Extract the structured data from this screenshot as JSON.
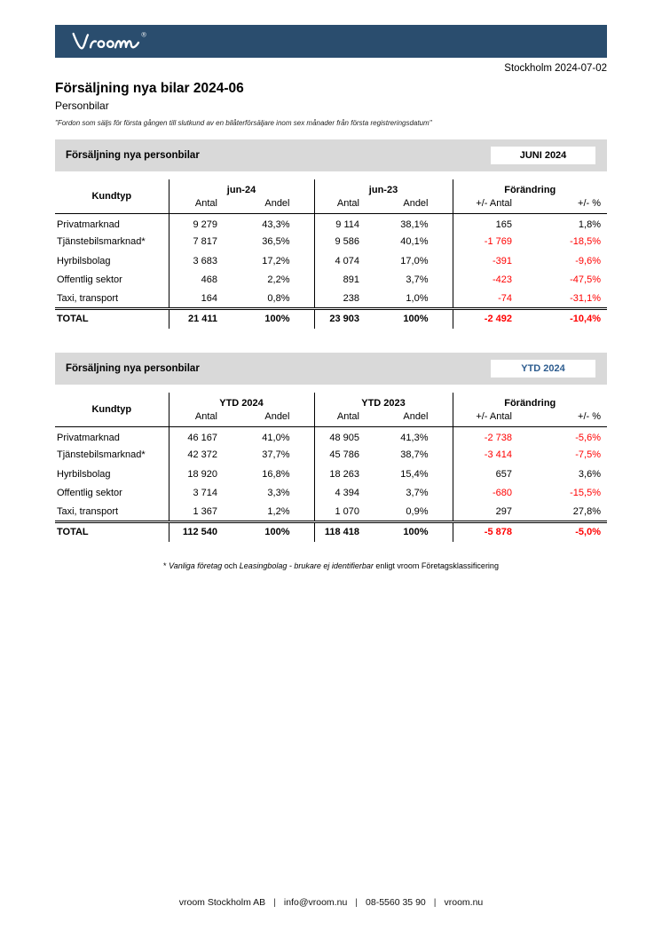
{
  "colors": {
    "header_navy": "#2a4d6e",
    "banner_gray": "#d9d9d9",
    "negative_red": "#ff0000",
    "badge_year_blue": "#2d5c8f"
  },
  "header": {
    "logo_text": "vroom",
    "logo_reg": "®",
    "date": "Stockholm 2024-07-02",
    "title": "Försäljning nya bilar 2024-06",
    "subtitle": "Personbilar",
    "quote": "\"Fordon som säljs för första gången till slutkund av en bilåterförsäljare inom sex månader från första registreringsdatum\""
  },
  "tables": [
    {
      "banner_title": "Försäljning nya personbilar",
      "badge": "JUNI 2024",
      "label_header": "Kundtyp",
      "groups": [
        "jun-24",
        "jun-23",
        "Förändring"
      ],
      "sub_headers": [
        "Antal",
        "Andel",
        "Antal",
        "Andel",
        "+/- Antal",
        "+/- %"
      ],
      "rows": [
        {
          "label": "Privatmarknad",
          "cells": [
            "9 279",
            "43,3%",
            "9 114",
            "38,1%",
            "165",
            "1,8%"
          ]
        },
        {
          "label": "Tjänstebilsmarknad*",
          "cells": [
            "7 817",
            "36,5%",
            "9 586",
            "40,1%",
            "-1 769",
            "-18,5%"
          ]
        },
        {
          "label": "Hyrbilsbolag",
          "cells": [
            "3 683",
            "17,2%",
            "4 074",
            "17,0%",
            "-391",
            "-9,6%"
          ]
        },
        {
          "label": "Offentlig sektor",
          "cells": [
            "468",
            "2,2%",
            "891",
            "3,7%",
            "-423",
            "-47,5%"
          ]
        },
        {
          "label": "Taxi, transport",
          "cells": [
            "164",
            "0,8%",
            "238",
            "1,0%",
            "-74",
            "-31,1%"
          ]
        }
      ],
      "total": {
        "label": "TOTAL",
        "cells": [
          "21 411",
          "100%",
          "23 903",
          "100%",
          "-2 492",
          "-10,4%"
        ]
      }
    },
    {
      "banner_title": "Försäljning nya personbilar",
      "badge": "YTD 2024",
      "label_header": "Kundtyp",
      "groups": [
        "YTD 2024",
        "YTD 2023",
        "Förändring"
      ],
      "sub_headers": [
        "Antal",
        "Andel",
        "Antal",
        "Andel",
        "+/- Antal",
        "+/- %"
      ],
      "rows": [
        {
          "label": "Privatmarknad",
          "cells": [
            "46 167",
            "41,0%",
            "48 905",
            "41,3%",
            "-2 738",
            "-5,6%"
          ]
        },
        {
          "label": "Tjänstebilsmarknad*",
          "cells": [
            "42 372",
            "37,7%",
            "45 786",
            "38,7%",
            "-3 414",
            "-7,5%"
          ]
        },
        {
          "label": "Hyrbilsbolag",
          "cells": [
            "18 920",
            "16,8%",
            "18 263",
            "15,4%",
            "657",
            "3,6%"
          ]
        },
        {
          "label": "Offentlig sektor",
          "cells": [
            "3 714",
            "3,3%",
            "4 394",
            "3,7%",
            "-680",
            "-15,5%"
          ]
        },
        {
          "label": "Taxi, transport",
          "cells": [
            "1 367",
            "1,2%",
            "1 070",
            "0,9%",
            "297",
            "27,8%"
          ]
        }
      ],
      "total": {
        "label": "TOTAL",
        "cells": [
          "112 540",
          "100%",
          "118 418",
          "100%",
          "-5 878",
          "-5,0%"
        ]
      }
    }
  ],
  "footnote": {
    "prefix": "* ",
    "italic1": "Vanliga företag",
    "mid": " och ",
    "italic2": "Leasingbolag - brukare ej identifierbar",
    "suffix": " enligt vroom Företagsklassificering"
  },
  "footer": {
    "company": "vroom Stockholm AB",
    "email": "info@vroom.nu",
    "phone": "08-5560 35 90",
    "website": "vroom.nu",
    "separator": "|"
  }
}
